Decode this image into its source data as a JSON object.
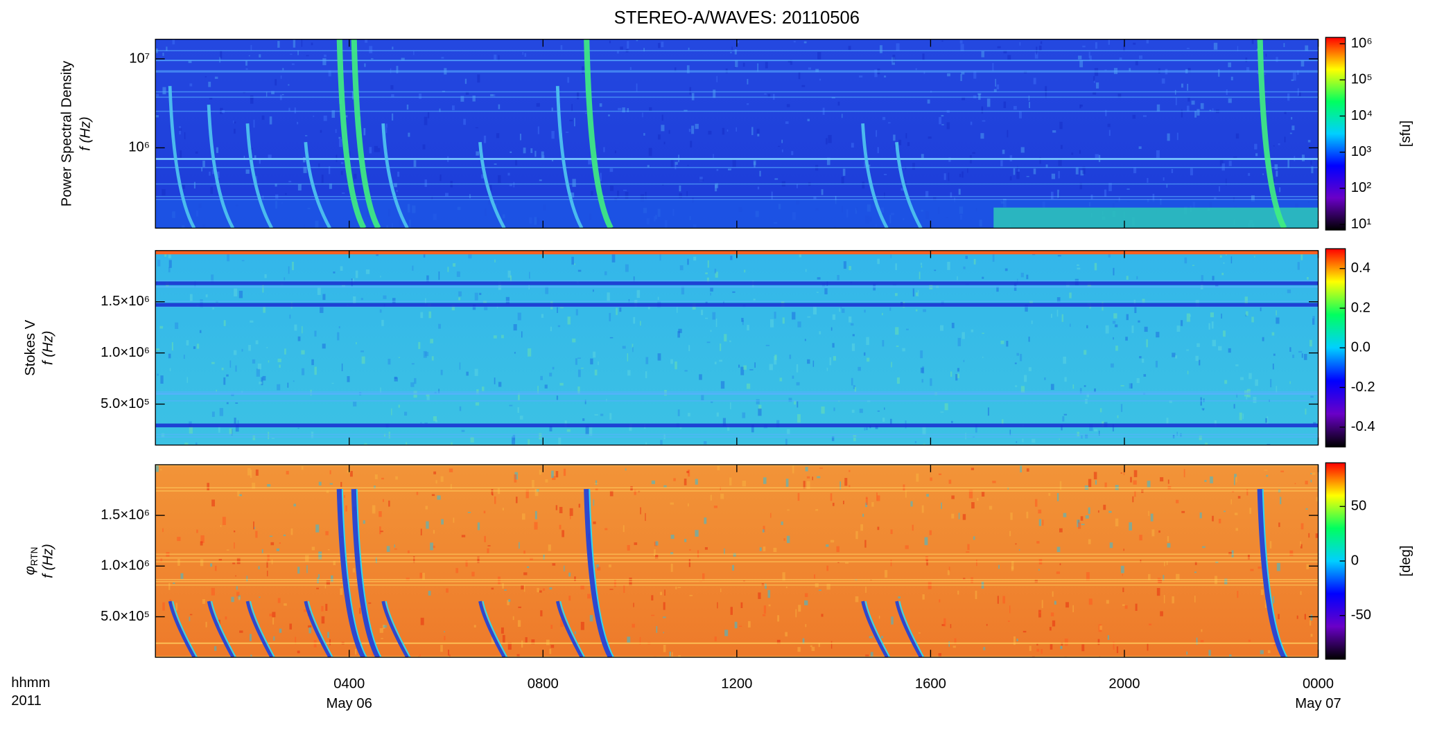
{
  "title": "STEREO-A/WAVES: 20110506",
  "x_axis": {
    "label": "hhmm",
    "year": "2011",
    "xlim": [
      0,
      24
    ],
    "xticks": [
      {
        "value": 4,
        "label": "0400"
      },
      {
        "value": 8,
        "label": "0800"
      },
      {
        "value": 12,
        "label": "1200"
      },
      {
        "value": 16,
        "label": "1600"
      },
      {
        "value": 20,
        "label": "2000"
      },
      {
        "value": 24,
        "label": "0000"
      }
    ],
    "dates": [
      {
        "value": 4,
        "label": "May 06"
      },
      {
        "value": 24,
        "label": "May 07"
      }
    ]
  },
  "chart_data": [
    {
      "type": "spectrogram",
      "ylabel": "Power Spectral Density",
      "ylabel2": "f (Hz)",
      "log": true,
      "ylim": [
        125000,
        16600000
      ],
      "yticks": [
        {
          "value": 1000000,
          "label": "10⁶"
        },
        {
          "value": 10000000,
          "label": "10⁷"
        }
      ],
      "colorbar_label": "[sfu]",
      "clog": true,
      "clim": [
        7,
        1500000
      ],
      "cticks": [
        {
          "value": 10,
          "label": "10¹"
        },
        {
          "value": 100,
          "label": "10²"
        },
        {
          "value": 1000,
          "label": "10³"
        },
        {
          "value": 10000,
          "label": "10⁴"
        },
        {
          "value": 100000,
          "label": "10⁵"
        },
        {
          "value": 1000000,
          "label": "10⁶"
        }
      ],
      "colormap": [
        "#000000",
        "#6a00c8",
        "#0000ff",
        "#00d0ff",
        "#00ff60",
        "#ffff00",
        "#ff0000"
      ]
    },
    {
      "type": "spectrogram",
      "ylabel": "Stokes V",
      "ylabel2": "f (Hz)",
      "log": false,
      "ylim": [
        100000,
        2000000
      ],
      "yticks": [
        {
          "value": 500000,
          "label": "5.0×10⁵"
        },
        {
          "value": 1000000,
          "label": "1.0×10⁶"
        },
        {
          "value": 1500000,
          "label": "1.5×10⁶"
        }
      ],
      "clog": false,
      "clim": [
        -0.5,
        0.5
      ],
      "cticks": [
        -0.4,
        -0.2,
        {
          "value": 0,
          "label": "0.0"
        },
        0.2,
        0.4
      ],
      "colormap": [
        "#000000",
        "#6a00c8",
        "#0000ff",
        "#00d0ff",
        "#00ff60",
        "#ffff00",
        "#ff0000"
      ]
    },
    {
      "type": "spectrogram",
      "ylabel": {
        "symbol": "φ",
        "subscript": "RTN"
      },
      "ylabel2": "f (Hz)",
      "log": false,
      "ylim": [
        100000,
        2000000
      ],
      "yticks": [
        {
          "value": 500000,
          "label": "5.0×10⁵"
        },
        {
          "value": 1000000,
          "label": "1.0×10⁶"
        },
        {
          "value": 1500000,
          "label": "1.5×10⁶"
        }
      ],
      "colorbar_label": "[deg]",
      "clog": false,
      "clim": [
        -90,
        90
      ],
      "cticks": [
        -50,
        0,
        50
      ],
      "colormap": [
        "#000000",
        "#6a00c8",
        "#0000ff",
        "#00d0ff",
        "#00ff60",
        "#ffff00",
        "#ff0000"
      ]
    }
  ]
}
